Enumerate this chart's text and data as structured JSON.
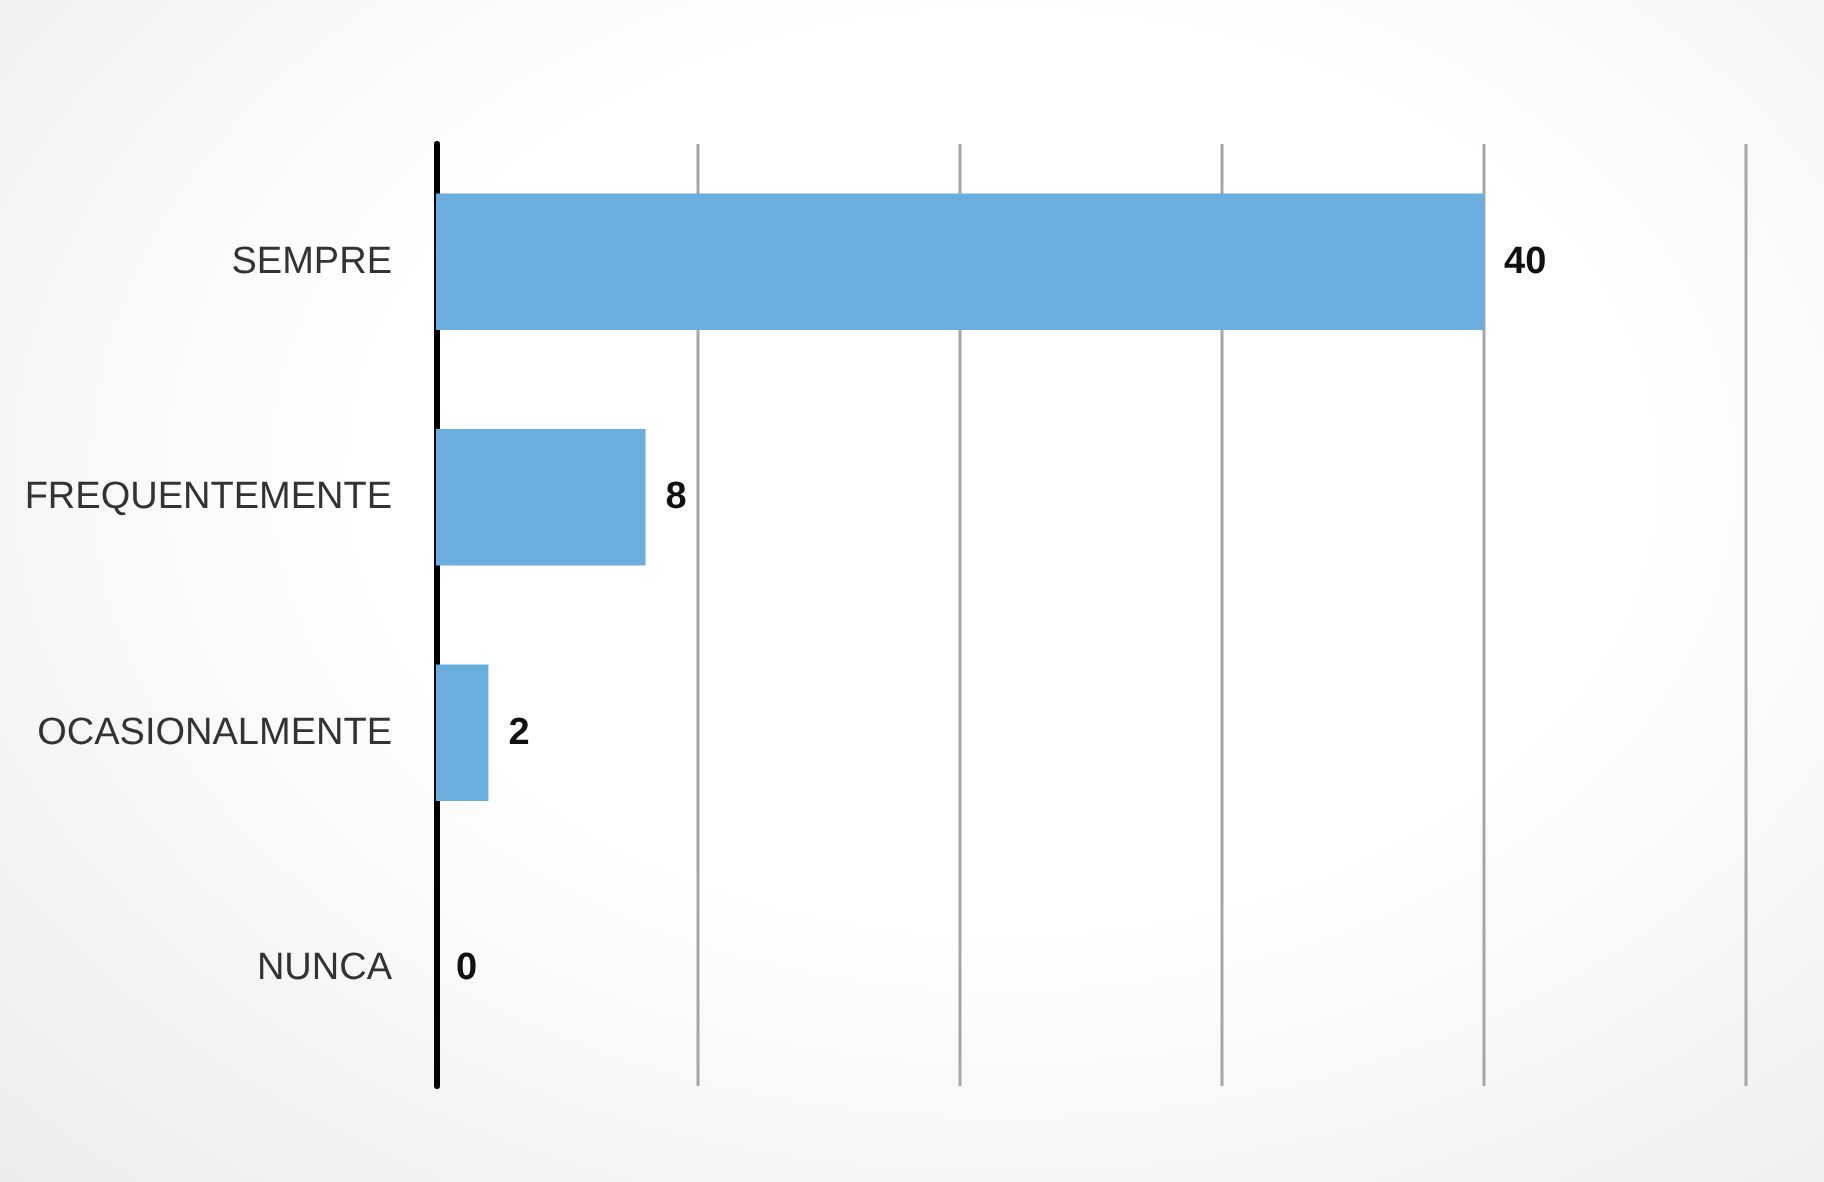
{
  "chart_data": {
    "type": "bar",
    "orientation": "horizontal",
    "categories": [
      "SEMPRE",
      "FREQUENTEMENTE",
      "OCASIONALMENTE",
      "NUNCA"
    ],
    "values": [
      40,
      8,
      2,
      0
    ],
    "color": "#6aaddf",
    "xlim": [
      0,
      50
    ],
    "xticks": [
      {
        "value": 0,
        "label": null
      },
      {
        "value": 10,
        "label": null
      },
      {
        "value": 20,
        "label": null
      },
      {
        "value": 30,
        "label": null
      },
      {
        "value": 40,
        "label": null
      },
      {
        "value": 50,
        "label": null
      }
    ],
    "tick_labels": "y",
    "grid": "x",
    "data_labels": true
  }
}
